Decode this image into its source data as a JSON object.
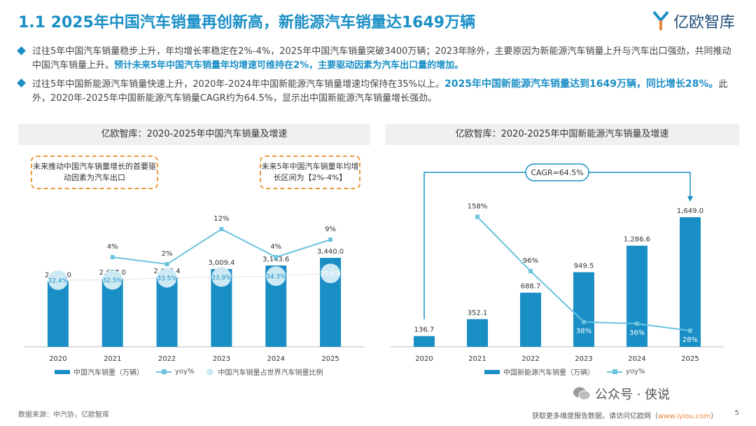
{
  "header": {
    "title": "1.1 2025年中国汽车销量再创新高，新能源汽车销量达1649万辆",
    "logo_text": "亿欧智库"
  },
  "bullets": [
    {
      "text": "过往5年中国汽车销量稳步上升，年均增长率稳定在2%-4%，2025年中国汽车销量突破3400万辆；2023年除外，主要原因为新能源汽车销量上升与汽车出口强劲，共同推动中国汽车销量上升。",
      "highlight": "预计未来5年中国汽车销量年均增速可维持在2%，主要驱动因素为汽车出口量的增加。"
    },
    {
      "text": "过往5年中国新能源汽车销量快速上升，2020年-2024年中国新能源汽车销量增速均保持在35%以上。",
      "highlight": "2025年中国新能源汽车销量达到1649万辆，同比增长28%。",
      "tail": "此外，2020年-2025年中国新能源汽车销量CAGR约为64.5%，显示出中国新能源汽车销量增长强劲。"
    }
  ],
  "left_panel": {
    "header": "亿欧智库：2020-2025年中国汽车销量及增速",
    "note1": "未来推动中国汽车销量增长的首要驱动因素为汽车出口",
    "note2": "未来5年中国汽车销量年均增长区间为【2%-4%】",
    "legend": {
      "bar": "中国汽车销量（万辆）",
      "line": "yoy%",
      "circle": "中国汽车销量占世界汽车销量比例"
    }
  },
  "right_panel": {
    "header": "亿欧智库：2020-2025年中国新能源汽车销量及增速",
    "cagr": "CAGR=64.5%",
    "legend": {
      "bar": "中国新能源汽车销量（万辆）",
      "line": "yoy%"
    }
  },
  "chart_data": [
    {
      "type": "bar",
      "title": "亿欧智库：2020-2025年中国汽车销量及增速",
      "categories": [
        "2020",
        "2021",
        "2022",
        "2023",
        "2024",
        "2025"
      ],
      "series": [
        {
          "name": "中国汽车销量（万辆）",
          "values": [
            2531.0,
            2627.0,
            2686.4,
            3009.4,
            3143.6,
            3440.0
          ],
          "labels": [
            "2,531.0",
            "2,627.0",
            "2,686.4",
            "3,009.4",
            "3,143.6",
            "3,440.0"
          ]
        },
        {
          "name": "yoy%",
          "values": [
            null,
            4,
            2,
            12,
            4,
            9
          ],
          "labels": [
            "",
            "4%",
            "2%",
            "12%",
            "4%",
            "9%"
          ]
        },
        {
          "name": "中国汽车销量占世界汽车销量比例",
          "values": [
            32.4,
            32.5,
            33.5,
            33.9,
            34.3,
            35.6
          ],
          "labels": [
            "32.4%",
            "32.5%",
            "33.5%",
            "33.9%",
            "34.3%",
            "35.6%"
          ]
        }
      ],
      "ylim": [
        0,
        4200
      ],
      "yoy_range": [
        0,
        20
      ],
      "share_range": [
        20,
        45
      ]
    },
    {
      "type": "bar",
      "title": "亿欧智库：2020-2025年中国新能源汽车销量及增速",
      "categories": [
        "2020",
        "2021",
        "2022",
        "2023",
        "2024",
        "2025"
      ],
      "series": [
        {
          "name": "中国新能源汽车销量（万辆）",
          "values": [
            136.7,
            352.1,
            688.7,
            949.5,
            1286.6,
            1649.0
          ],
          "labels": [
            "136.7",
            "352.1",
            "688.7",
            "949.5",
            "1,286.6",
            "1,649.0"
          ]
        },
        {
          "name": "yoy%",
          "values": [
            null,
            158,
            96,
            38,
            36,
            28
          ],
          "labels": [
            "",
            "158%",
            "96%",
            "38%",
            "36%",
            "28%"
          ]
        }
      ],
      "ylim": [
        0,
        2050
      ],
      "yoy_range": [
        0,
        200
      ]
    }
  ],
  "footer": {
    "source": "数据来源：中汽协，亿欧智库",
    "more": "获取更多维度报告数据，请访问亿欧网（",
    "link": "www.iyiou.com",
    "more_end": "）",
    "wechat": "公众号 · 侠说",
    "page": "5"
  },
  "colors": {
    "accent": "#1a8fc6",
    "line": "#6cc3e0",
    "circle": "#cde9f4",
    "note_border": "#e89a3c"
  }
}
